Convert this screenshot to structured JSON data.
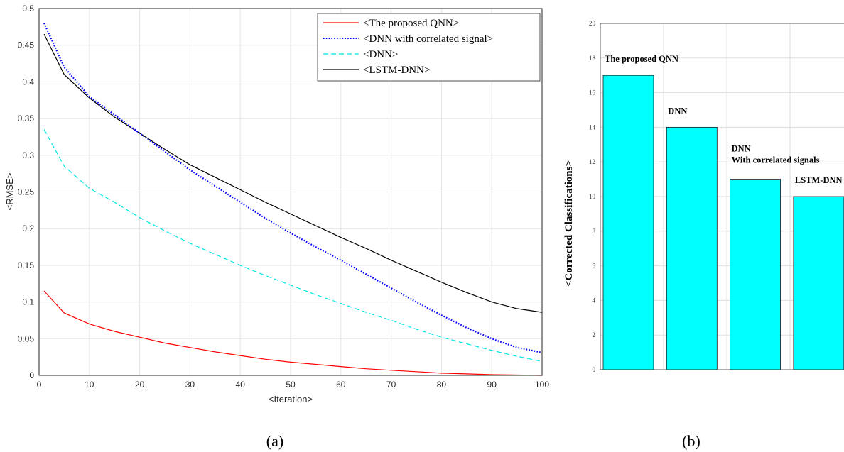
{
  "chart_data": [
    {
      "type": "line",
      "xlabel": "<Iteration>",
      "ylabel": "<RMSE>",
      "xlim": [
        0,
        100
      ],
      "ylim": [
        0,
        0.5
      ],
      "xticks": [
        "0",
        "10",
        "20",
        "30",
        "40",
        "50",
        "60",
        "70",
        "80",
        "90",
        "100"
      ],
      "yticks": [
        "0",
        "0.05",
        "0.1",
        "0.15",
        "0.2",
        "0.25",
        "0.3",
        "0.35",
        "0.4",
        "0.45",
        "0.5"
      ],
      "grid": true,
      "legend_position": "top-right",
      "x": [
        1,
        5,
        10,
        15,
        20,
        25,
        30,
        35,
        40,
        45,
        50,
        55,
        60,
        65,
        70,
        75,
        80,
        85,
        90,
        95,
        100
      ],
      "series": [
        {
          "name": "<The proposed QNN>",
          "color": "#ff0000",
          "style": "solid",
          "values": [
            0.115,
            0.085,
            0.07,
            0.06,
            0.052,
            0.044,
            0.038,
            0.032,
            0.027,
            0.022,
            0.018,
            0.015,
            0.012,
            0.009,
            0.007,
            0.005,
            0.003,
            0.002,
            0.001,
            0.0005,
            0.0
          ]
        },
        {
          "name": "<DNN with correlated signal>",
          "color": "#0000ff",
          "style": "dotted",
          "values": [
            0.48,
            0.42,
            0.38,
            0.355,
            0.33,
            0.305,
            0.28,
            0.258,
            0.236,
            0.214,
            0.194,
            0.175,
            0.157,
            0.138,
            0.119,
            0.1,
            0.082,
            0.065,
            0.05,
            0.038,
            0.031
          ]
        },
        {
          "name": "<DNN>",
          "color": "#00e5e5",
          "style": "dashed",
          "values": [
            0.335,
            0.285,
            0.255,
            0.236,
            0.215,
            0.197,
            0.18,
            0.165,
            0.15,
            0.136,
            0.123,
            0.11,
            0.098,
            0.086,
            0.075,
            0.063,
            0.052,
            0.043,
            0.034,
            0.026,
            0.019
          ]
        },
        {
          "name": "<LSTM-DNN>",
          "color": "#000000",
          "style": "solid",
          "values": [
            0.465,
            0.41,
            0.378,
            0.352,
            0.33,
            0.308,
            0.287,
            0.27,
            0.253,
            0.236,
            0.22,
            0.204,
            0.188,
            0.173,
            0.157,
            0.142,
            0.127,
            0.113,
            0.1,
            0.091,
            0.086
          ]
        }
      ]
    },
    {
      "type": "bar",
      "ylabel": "<Corrected Classifications>",
      "ylim": [
        0,
        20
      ],
      "yticks": [
        "0",
        "2",
        "4",
        "6",
        "8",
        "10",
        "12",
        "14",
        "16",
        "18",
        "20"
      ],
      "grid": true,
      "bar_color": "#00ffff",
      "bars": [
        {
          "label_lines": [
            "The proposed QNN"
          ],
          "value": 17
        },
        {
          "label_lines": [
            "DNN"
          ],
          "value": 14
        },
        {
          "label_lines": [
            "DNN",
            "With correlated signals"
          ],
          "value": 11
        },
        {
          "label_lines": [
            "LSTM-DNN"
          ],
          "value": 10
        }
      ]
    }
  ],
  "captions": {
    "a": "(a)",
    "b": "(b)"
  }
}
